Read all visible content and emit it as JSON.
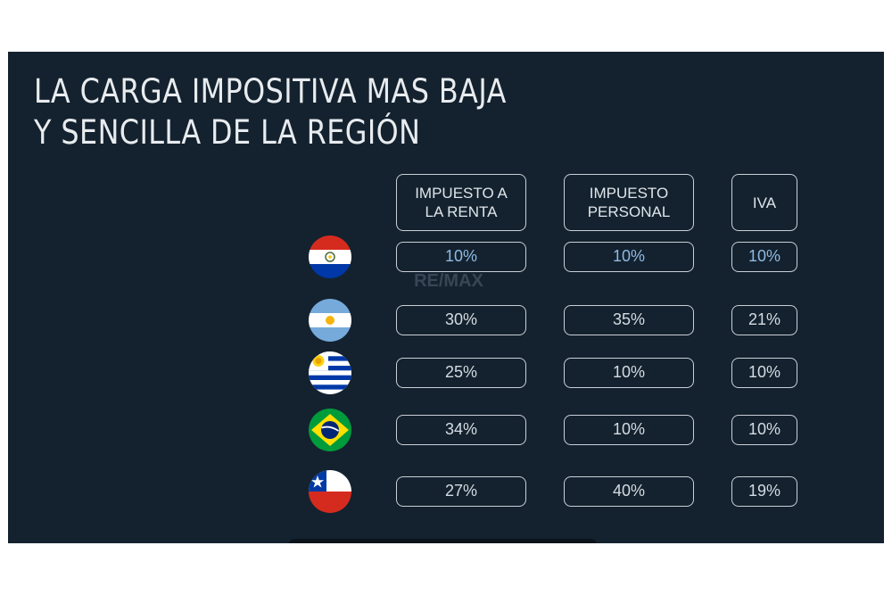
{
  "title": {
    "line1": "LA CARGA IMPOSITIVA MAS BAJA",
    "line2": "Y SENCILLA DE LA REGIÓN"
  },
  "headers": {
    "col1": [
      "IMPUESTO A",
      "LA RENTA"
    ],
    "col2": [
      "IMPUESTO",
      "PERSONAL"
    ],
    "col3": [
      "IVA"
    ]
  },
  "watermark": "RE/MAX",
  "rows": [
    {
      "flag_icon": "paraguay-flag-icon",
      "renta": "10%",
      "personal": "10%",
      "iva": "10%"
    },
    {
      "flag_icon": "argentina-flag-icon",
      "renta": "30%",
      "personal": "35%",
      "iva": "21%"
    },
    {
      "flag_icon": "uruguay-flag-icon",
      "renta": "25%",
      "personal": "10%",
      "iva": "10%"
    },
    {
      "flag_icon": "brazil-flag-icon",
      "renta": "34%",
      "personal": "10%",
      "iva": "10%"
    },
    {
      "flag_icon": "chile-flag-icon",
      "renta": "27%",
      "personal": "40%",
      "iva": "19%"
    }
  ],
  "colors": {
    "background": "#14222f",
    "text": "#e8ecef",
    "highlight": "#8fb9e3",
    "border": "#c8d0d8"
  }
}
